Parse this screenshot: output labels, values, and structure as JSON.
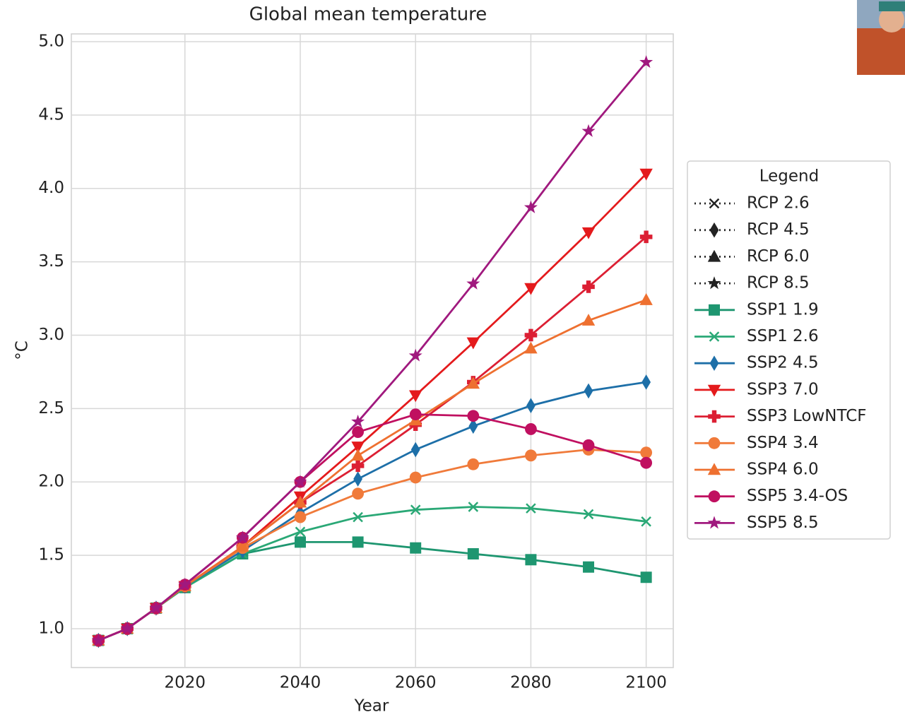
{
  "chart_data": {
    "type": "line",
    "title": "Global mean temperature",
    "x_label": "Year",
    "y_label": "°C",
    "x": [
      2005,
      2010,
      2015,
      2020,
      2030,
      2040,
      2050,
      2060,
      2070,
      2080,
      2090,
      2100
    ],
    "xlim": [
      2000.3,
      2104.7
    ],
    "xticks": [
      2020,
      2040,
      2060,
      2080,
      2100
    ],
    "ylim": [
      0.735,
      5.053
    ],
    "yticks": [
      {
        "value": 1,
        "label": "1.0"
      },
      1.5,
      {
        "value": 2,
        "label": "2.0"
      },
      2.5,
      {
        "value": 3,
        "label": "3.0"
      },
      3.5,
      {
        "value": 4,
        "label": "4.0"
      },
      4.5,
      {
        "value": 5,
        "label": "5.0"
      }
    ],
    "grid": true,
    "legend_title": "Legend",
    "legend_position": "right",
    "series": [
      {
        "name": "RCP 2.6",
        "color": "#222222",
        "linestyle": "dotted",
        "marker": "x",
        "values": [
          null,
          null,
          null,
          null,
          null,
          null,
          null,
          null,
          null,
          null,
          null,
          null
        ]
      },
      {
        "name": "RCP 4.5",
        "color": "#222222",
        "linestyle": "dotted",
        "marker": "diamond",
        "values": [
          null,
          null,
          null,
          null,
          null,
          null,
          null,
          null,
          null,
          null,
          null,
          null
        ]
      },
      {
        "name": "RCP 6.0",
        "color": "#222222",
        "linestyle": "dotted",
        "marker": "triangle",
        "values": [
          null,
          null,
          null,
          null,
          null,
          null,
          null,
          null,
          null,
          null,
          null,
          null
        ]
      },
      {
        "name": "RCP 8.5",
        "color": "#222222",
        "linestyle": "dotted",
        "marker": "star",
        "values": [
          null,
          null,
          null,
          null,
          null,
          null,
          null,
          null,
          null,
          null,
          null,
          null
        ]
      },
      {
        "name": "SSP1 1.9",
        "color": "#1e9670",
        "linestyle": "solid",
        "marker": "square",
        "values": [
          0.92,
          1.0,
          1.14,
          1.28,
          1.51,
          1.59,
          1.59,
          1.55,
          1.51,
          1.47,
          1.42,
          1.35
        ]
      },
      {
        "name": "SSP1 2.6",
        "color": "#2aa876",
        "linestyle": "solid",
        "marker": "x",
        "values": [
          0.92,
          1.0,
          1.14,
          1.28,
          1.51,
          1.66,
          1.76,
          1.81,
          1.83,
          1.82,
          1.78,
          1.73
        ]
      },
      {
        "name": "SSP2 4.5",
        "color": "#1d6fa8",
        "linestyle": "solid",
        "marker": "diamond",
        "values": [
          0.92,
          1.0,
          1.14,
          1.29,
          1.53,
          1.79,
          2.02,
          2.22,
          2.38,
          2.52,
          2.62,
          2.68
        ]
      },
      {
        "name": "SSP3 7.0",
        "color": "#e41a1c",
        "linestyle": "solid",
        "marker": "triangle-down",
        "values": [
          0.92,
          1.0,
          1.14,
          1.29,
          1.56,
          1.9,
          2.24,
          2.59,
          2.95,
          3.32,
          3.7,
          4.1
        ]
      },
      {
        "name": "SSP3 LowNTCF",
        "color": "#dc1f33",
        "linestyle": "solid",
        "marker": "plus",
        "values": [
          0.92,
          1.0,
          1.14,
          1.29,
          1.56,
          1.86,
          2.11,
          2.39,
          2.68,
          3.0,
          3.33,
          3.67
        ]
      },
      {
        "name": "SSP4 3.4",
        "color": "#f07a3a",
        "linestyle": "solid",
        "marker": "circle",
        "values": [
          0.92,
          1.0,
          1.14,
          1.29,
          1.55,
          1.76,
          1.92,
          2.03,
          2.12,
          2.18,
          2.22,
          2.2
        ]
      },
      {
        "name": "SSP4 6.0",
        "color": "#ee7030",
        "linestyle": "solid",
        "marker": "triangle",
        "values": [
          0.92,
          1.0,
          1.14,
          1.29,
          1.56,
          1.86,
          2.18,
          2.42,
          2.67,
          2.91,
          3.1,
          3.24
        ]
      },
      {
        "name": "SSP5 3.4-OS",
        "color": "#c01060",
        "linestyle": "solid",
        "marker": "circle",
        "values": [
          0.92,
          1.0,
          1.14,
          1.3,
          1.62,
          2.0,
          2.34,
          2.46,
          2.45,
          2.36,
          2.25,
          2.13
        ]
      },
      {
        "name": "SSP5 8.5",
        "color": "#a0197e",
        "linestyle": "solid",
        "marker": "star",
        "values": [
          0.92,
          1.0,
          1.14,
          1.3,
          1.62,
          2.0,
          2.41,
          2.86,
          3.35,
          3.87,
          4.39,
          4.86
        ]
      }
    ]
  }
}
